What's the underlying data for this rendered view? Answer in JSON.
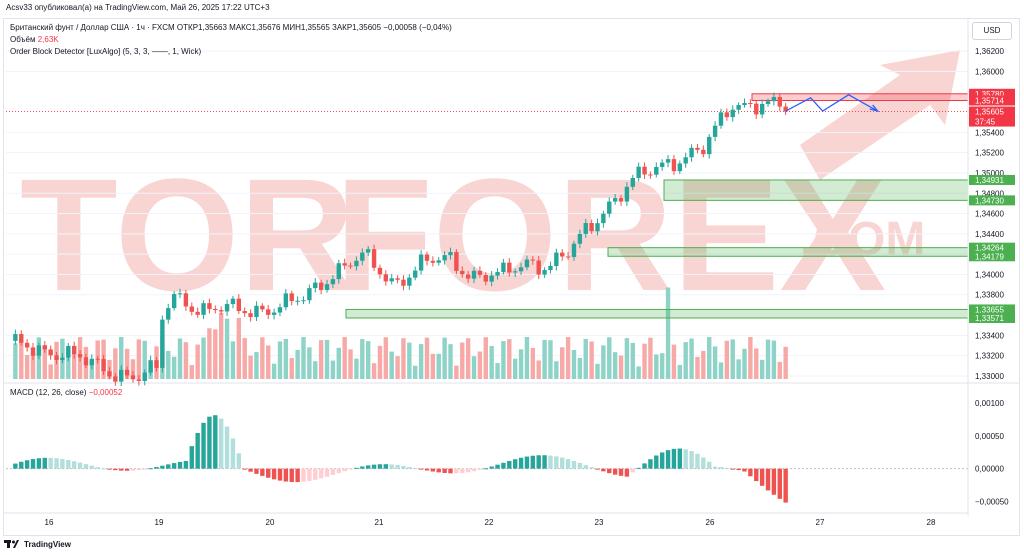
{
  "header": {
    "publisher_line": "Acsv33 опубликовал(а) на TradingView.com, Май 26, 2025 17:22 UTC+3"
  },
  "legend": {
    "symbol_line": "Британский фунт / Доллар США · 1ч · FXCM ОТКР1,35663 МАКС1,35676 МИН1,35565 ЗАКР1,35605 −0,00058 (−0,04%)",
    "volume_label": "Объём",
    "volume_value": "2,63K",
    "indicator": "Order Block Detector [LuxAlgo] (5, 3, 3, ——, 1, Wick)"
  },
  "macd_legend": {
    "label": "MACD (12, 26, close)",
    "value": "−0,00052"
  },
  "currency": "USD",
  "watermark": {
    "left": "TOR",
    "right": "FOREX",
    "suffix": ".COM"
  },
  "footer": {
    "brand": "TradingView"
  },
  "colors": {
    "up": "#26a69a",
    "down": "#ef5350",
    "up_vol": "#8ed3c8",
    "down_vol": "#f7a9a7",
    "bull_ob": "#4caf50",
    "bear_ob": "#f23645",
    "projection": "#2962ff",
    "watermark": "#f8d5d3"
  },
  "chart_data": {
    "type": "candlestick",
    "ylim": [
      1.3296,
      1.3631
    ],
    "price_ticks": [
      "1,36200",
      "1,36000",
      "1,35400",
      "1,35200",
      "1,35000",
      "1,34800",
      "1,34600",
      "1,34400",
      "1,34200",
      "1,34000",
      "1,33800",
      "1,33400",
      "1,33200",
      "1,33000"
    ],
    "price_labels": [
      {
        "text": "1,35780",
        "kind": "bear"
      },
      {
        "text": "1,35714",
        "kind": "bear"
      },
      {
        "text": "1,35605",
        "kind": "last",
        "sub": "37:45"
      },
      {
        "text": "1,34931",
        "kind": "bull"
      },
      {
        "text": "1,34730",
        "kind": "bull"
      },
      {
        "text": "1,34264",
        "kind": "bull"
      },
      {
        "text": "1,34179",
        "kind": "bull"
      },
      {
        "text": "1,33655",
        "kind": "bull"
      },
      {
        "text": "1,33571",
        "kind": "bull"
      }
    ],
    "x_ticks": [
      "16",
      "19",
      "20",
      "21",
      "22",
      "23",
      "26",
      "27",
      "28"
    ],
    "bearish_order_blocks": [
      {
        "top": 1.3578,
        "bottom": 1.35714
      }
    ],
    "bullish_order_blocks": [
      {
        "top": 1.34931,
        "bottom": 1.3473
      },
      {
        "top": 1.34264,
        "bottom": 1.34179
      },
      {
        "top": 1.33655,
        "bottom": 1.33571
      }
    ],
    "last_price": 1.35605,
    "macd": {
      "ticks": [
        "0,00100",
        "0,00050",
        "0,00000",
        "−0,00050"
      ],
      "ylim": [
        -0.0006,
        0.0012
      ]
    }
  }
}
